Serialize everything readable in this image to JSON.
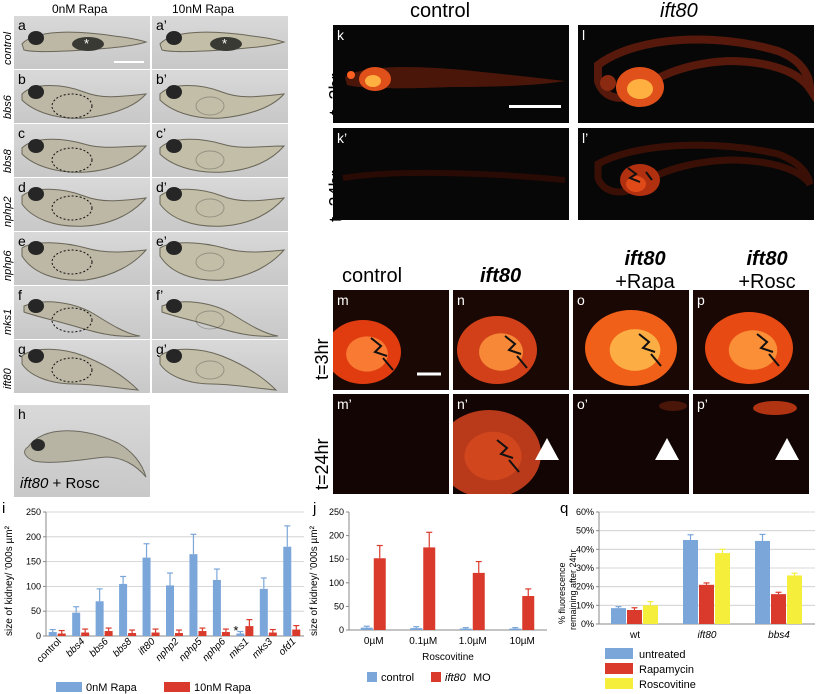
{
  "left_panel": {
    "col_headers": [
      "0nM Rapa",
      "10nM Rapa"
    ],
    "rows": [
      {
        "gene": "control",
        "left": "a",
        "right": "a’"
      },
      {
        "gene": "bbs6",
        "left": "b",
        "right": "b’"
      },
      {
        "gene": "bbs8",
        "left": "c",
        "right": "c’"
      },
      {
        "gene": "nphp2",
        "left": "d",
        "right": "d’"
      },
      {
        "gene": "nphp6",
        "left": "e",
        "right": "e’"
      },
      {
        "gene": "mks1",
        "left": "f",
        "right": "f’"
      },
      {
        "gene": "ift80",
        "left": "g",
        "right": "g’"
      }
    ],
    "h_label": "h",
    "h_caption_italic": "ift80",
    "h_caption_rest": " + Rosc",
    "asterisk": "*"
  },
  "top_right": {
    "titles": [
      "control",
      "ift80"
    ],
    "row_labels": [
      "t=3hr",
      "t=24hr"
    ],
    "panels": [
      "k",
      "l",
      "k’",
      "l’"
    ]
  },
  "mid_right": {
    "col_titles": [
      {
        "italic": "ift80",
        "line2": ""
      },
      {
        "italic": "ift80",
        "line2": "+Rapa"
      },
      {
        "italic": "ift80",
        "line2": "+Rosc"
      }
    ],
    "control_title": "control",
    "row_labels": [
      "t=3hr",
      "t=24hr"
    ],
    "panels": [
      "m",
      "n",
      "o",
      "p",
      "m’",
      "n’",
      "o’",
      "p’"
    ]
  },
  "chart_labels": [
    "i",
    "j",
    "q"
  ],
  "chart_data": [
    {
      "type": "bar",
      "ylabel": "size of kidney/ '000s µm²",
      "ylim": [
        0,
        250
      ],
      "yticks": [
        "0",
        "50",
        "100",
        "150",
        "200",
        "250"
      ],
      "categories": [
        "control",
        "bbs4",
        "bbs6",
        "bbs8",
        "ift80",
        "nphp2",
        "nphp5",
        "nphp6",
        "mks1",
        "mks3",
        "ofd1"
      ],
      "series": [
        {
          "name": "0nM Rapa",
          "color": "#7ba6d9",
          "values": [
            8,
            47,
            70,
            105,
            158,
            102,
            165,
            113,
            5,
            95,
            180
          ],
          "errors": [
            5,
            12,
            25,
            15,
            28,
            25,
            40,
            22,
            4,
            22,
            42
          ]
        },
        {
          "name": "10nM Rapa",
          "color": "#d93a2b",
          "values": [
            5,
            7,
            10,
            6,
            7,
            6,
            10,
            8,
            20,
            7,
            13
          ],
          "errors": [
            6,
            7,
            6,
            6,
            7,
            6,
            6,
            6,
            13,
            6,
            8
          ]
        }
      ],
      "annotation": "*"
    },
    {
      "type": "bar",
      "ylabel": "size of kidney/ '000s µm²",
      "xlabel": "Roscovitine",
      "ylim": [
        0,
        250
      ],
      "yticks": [
        "0",
        "50",
        "100",
        "150",
        "200",
        "250"
      ],
      "categories": [
        "0µM",
        "0.1µM",
        "1.0µM",
        "10µM"
      ],
      "series": [
        {
          "name": "control",
          "color": "#7ba6d9",
          "values": [
            5,
            4,
            3,
            3
          ],
          "errors": [
            3,
            3,
            2,
            2
          ]
        },
        {
          "name": "MO",
          "name_italic": "ift80",
          "color": "#d93a2b",
          "values": [
            152,
            175,
            121,
            72
          ],
          "errors": [
            27,
            32,
            24,
            15
          ]
        }
      ]
    },
    {
      "type": "bar",
      "ylabel_line1": "% fluorescence",
      "ylabel_line2": "remaining after 24hr",
      "ylim": [
        0,
        60
      ],
      "yticks": [
        "0%",
        "10%",
        "20%",
        "30%",
        "40%",
        "50%",
        "60%"
      ],
      "categories": [
        "wt",
        "ift80",
        "bbs4"
      ],
      "series": [
        {
          "name": "untreated",
          "color": "#7ba6d9",
          "values": [
            8.5,
            45,
            44.5
          ],
          "errors": [
            0.8,
            2.8,
            3.5
          ]
        },
        {
          "name": "Rapamycin",
          "color": "#d93a2b",
          "values": [
            7.5,
            21,
            16
          ],
          "errors": [
            1.2,
            1,
            1
          ]
        },
        {
          "name": "Roscovitine",
          "color": "#f5ef3b",
          "values": [
            10,
            38,
            26
          ],
          "errors": [
            2,
            2,
            1.2
          ]
        }
      ]
    }
  ]
}
